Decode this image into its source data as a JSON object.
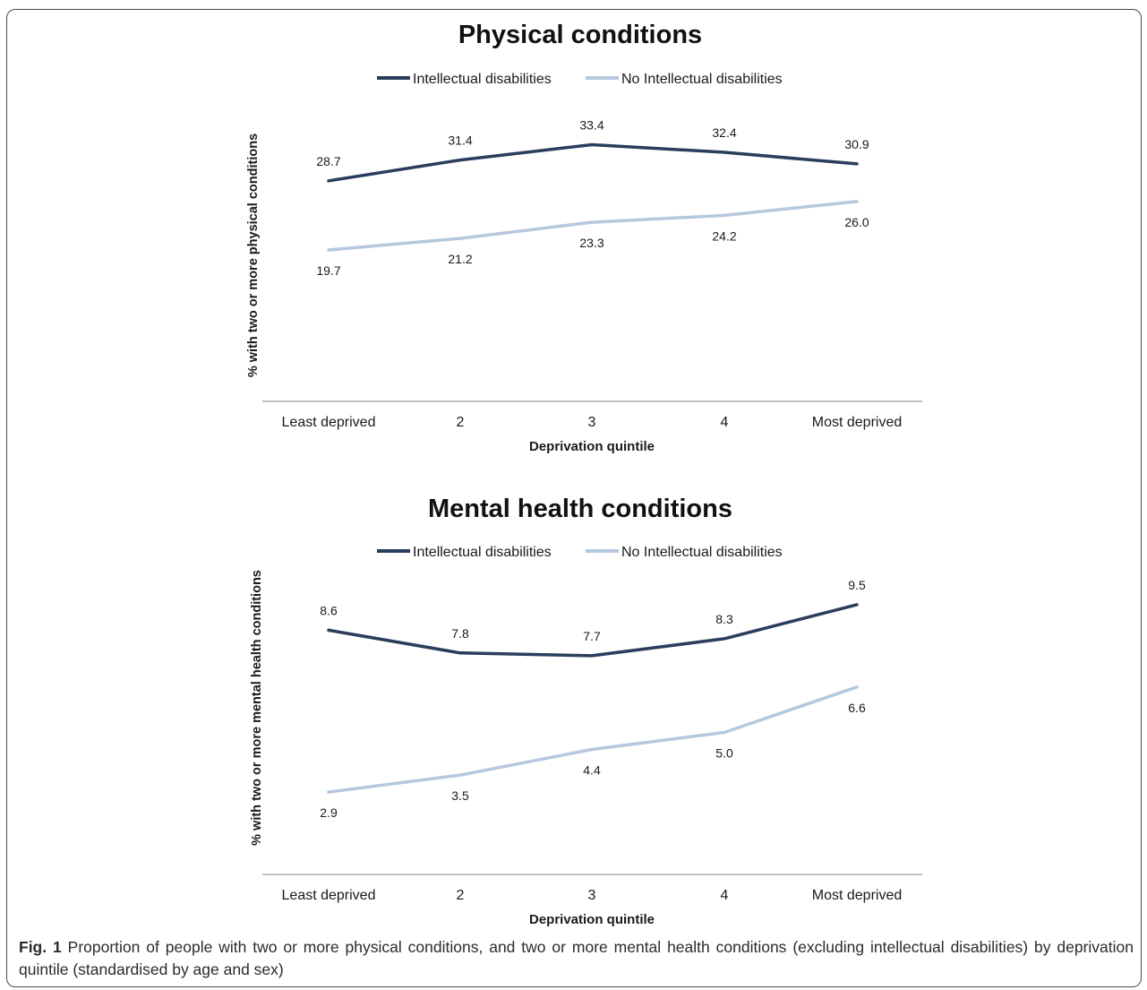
{
  "figure": {
    "caption_label": "Fig. 1",
    "caption_text": "Proportion of people with two or more physical conditions, and two or more mental health conditions (excluding intellectual disabilities) by deprivation quintile (standardised by age and sex)"
  },
  "colors": {
    "series_dark": "#2b3d5c",
    "series_light": "#b6c8de",
    "axis": "#9a9a9a",
    "text": "#1a1a1a"
  },
  "chart_data": [
    {
      "type": "line",
      "title": "Physical conditions",
      "xlabel": "Deprivation quintile",
      "ylabel": "% with two or more physical conditions",
      "categories": [
        "Least deprived",
        "2",
        "3",
        "4",
        "Most deprived"
      ],
      "series": [
        {
          "name": "Intellectual disabilities",
          "color": "#2b3d5c",
          "values": [
            28.7,
            31.4,
            33.4,
            32.4,
            30.9
          ],
          "labels": [
            "28.7",
            "31.4",
            "33.4",
            "32.4",
            "30.9"
          ],
          "label_position": "above"
        },
        {
          "name": "No Intellectual disabilities",
          "color": "#b6c8de",
          "values": [
            19.7,
            21.2,
            23.3,
            24.2,
            26.0
          ],
          "labels": [
            "19.7",
            "21.2",
            "23.3",
            "24.2",
            "26.0"
          ],
          "label_position": "below"
        }
      ],
      "ylim": [
        0,
        38
      ],
      "grid": false,
      "legend": "top-center"
    },
    {
      "type": "line",
      "title": "Mental health conditions",
      "xlabel": "Deprivation quintile",
      "ylabel": "% with two or more mental health conditions",
      "categories": [
        "Least deprived",
        "2",
        "3",
        "4",
        "Most deprived"
      ],
      "series": [
        {
          "name": "Intellectual disabilities",
          "color": "#2b3d5c",
          "values": [
            8.6,
            7.8,
            7.7,
            8.3,
            9.5
          ],
          "labels": [
            "8.6",
            "7.8",
            "7.7",
            "8.3",
            "9.5"
          ],
          "label_position": "above"
        },
        {
          "name": "No Intellectual disabilities",
          "color": "#b6c8de",
          "values": [
            2.9,
            3.5,
            4.4,
            5.0,
            6.6
          ],
          "labels": [
            "2.9",
            "3.5",
            "4.4",
            "5.0",
            "6.6"
          ],
          "label_position": "below"
        }
      ],
      "ylim": [
        0,
        10.6
      ],
      "grid": false,
      "legend": "top-center"
    }
  ]
}
